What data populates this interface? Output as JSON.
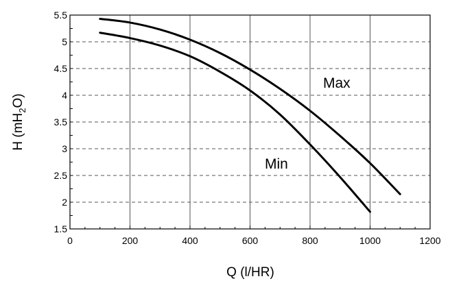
{
  "chart_data": {
    "type": "line",
    "title": "",
    "xlabel": "Q (l/HR)",
    "ylabel_main": "H (mH",
    "ylabel_sub": "2",
    "ylabel_tail": "O)",
    "xlim": [
      0,
      1200
    ],
    "ylim": [
      1.5,
      5.5
    ],
    "x_ticks": [
      0,
      200,
      400,
      600,
      800,
      1000,
      1200
    ],
    "x_tick_labels": [
      "0",
      "200",
      "400",
      "600",
      "800",
      "1000",
      "1200"
    ],
    "y_ticks": [
      1.5,
      2,
      2.5,
      3,
      3.5,
      4,
      4.5,
      5,
      5.5
    ],
    "y_tick_labels": [
      "1.5",
      "2",
      "2.5",
      "3",
      "3.5",
      "4",
      "4.5",
      "5",
      "5.5"
    ],
    "grid": {
      "x": "solid",
      "y": "dashed"
    },
    "series": [
      {
        "name": "Max",
        "color": "#000000",
        "x": [
          100,
          200,
          300,
          400,
          500,
          600,
          700,
          800,
          900,
          1000,
          1100
        ],
        "y": [
          5.43,
          5.36,
          5.23,
          5.04,
          4.79,
          4.48,
          4.12,
          3.71,
          3.24,
          2.73,
          2.15
        ]
      },
      {
        "name": "Min",
        "color": "#000000",
        "x": [
          100,
          200,
          300,
          400,
          500,
          600,
          700,
          800,
          900,
          1000
        ],
        "y": [
          5.17,
          5.07,
          4.93,
          4.73,
          4.44,
          4.09,
          3.64,
          3.08,
          2.47,
          1.82
        ]
      }
    ]
  }
}
